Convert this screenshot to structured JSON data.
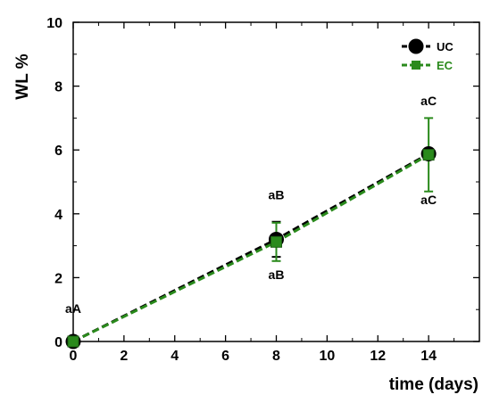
{
  "chart_data": {
    "type": "line",
    "xlabel": "time (days)",
    "ylabel": "WL %",
    "xlim": [
      0,
      16
    ],
    "ylim": [
      0,
      10
    ],
    "xticks": [
      0,
      2,
      4,
      6,
      8,
      10,
      12,
      14
    ],
    "yticks": [
      0,
      2,
      4,
      6,
      8,
      10
    ],
    "grid": false,
    "legend_position": "top-right",
    "series": [
      {
        "name": "UC",
        "color": "#000000",
        "marker": "circle",
        "line_style": "dashed",
        "x": [
          0,
          8,
          14
        ],
        "y": [
          0,
          3.2,
          5.88
        ],
        "error": [
          0,
          0.55,
          0
        ]
      },
      {
        "name": "EC",
        "color": "#2a8a1c",
        "marker": "square",
        "line_style": "dashed",
        "x": [
          0,
          8,
          14
        ],
        "y": [
          0,
          3.12,
          5.85
        ],
        "error": [
          0,
          0.6,
          1.15
        ]
      }
    ],
    "annotations": [
      {
        "text": "aA",
        "x": 0,
        "y": 0.9
      },
      {
        "text": "aB",
        "x": 8,
        "y": 4.45
      },
      {
        "text": "aB",
        "x": 8,
        "y": 1.95
      },
      {
        "text": "aC",
        "x": 14,
        "y": 7.4
      },
      {
        "text": "aC",
        "x": 14,
        "y": 4.3
      }
    ]
  }
}
